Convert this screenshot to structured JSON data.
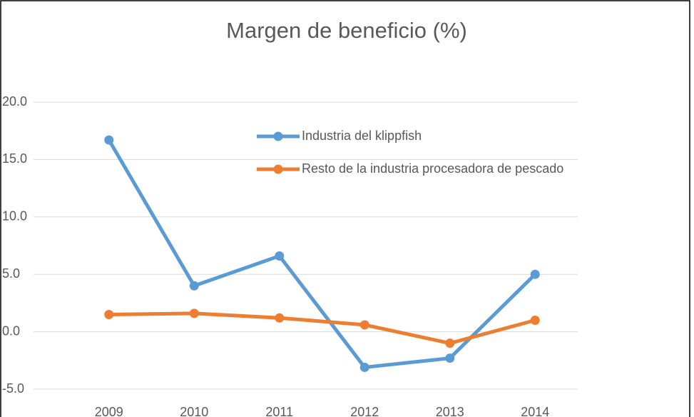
{
  "chart_data": {
    "type": "line",
    "title": "Margen de beneficio (%)",
    "categories": [
      "2009",
      "2010",
      "2011",
      "2012",
      "2013",
      "2014"
    ],
    "series": [
      {
        "name": "Industria del klippfish",
        "color": "#5b9bd5",
        "values": [
          16.7,
          4.0,
          6.6,
          -3.1,
          -2.3,
          5.0
        ]
      },
      {
        "name": "Resto de la industria procesadora de pescado",
        "color": "#ed7d31",
        "values": [
          1.5,
          1.6,
          1.2,
          0.6,
          -1.0,
          1.0
        ]
      }
    ],
    "ylim": [
      -5,
      20
    ],
    "yticks": [
      {
        "value": -5,
        "label": "-5.0"
      },
      {
        "value": 0,
        "label": "0.0"
      },
      {
        "value": 5,
        "label": "5.0"
      },
      {
        "value": 10,
        "label": "10.0"
      },
      {
        "value": 15,
        "label": "15.0"
      },
      {
        "value": 20,
        "label": "20.0"
      }
    ],
    "grid": true,
    "legend": "top"
  }
}
